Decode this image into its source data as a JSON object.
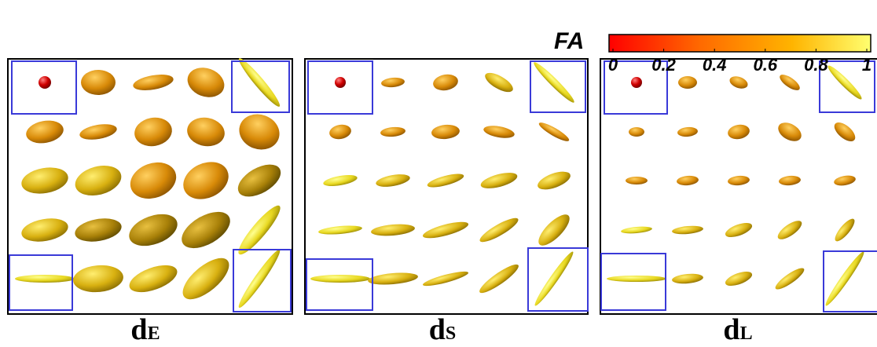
{
  "colorbar": {
    "label": "FA",
    "range": [
      0,
      1
    ],
    "ticks": [
      0,
      0.2,
      0.4,
      0.6,
      0.8,
      1
    ]
  },
  "panels": [
    {
      "label": "d",
      "subscript": "E"
    },
    {
      "label": "d",
      "subscript": "S"
    },
    {
      "label": "d",
      "subscript": "L"
    }
  ]
}
